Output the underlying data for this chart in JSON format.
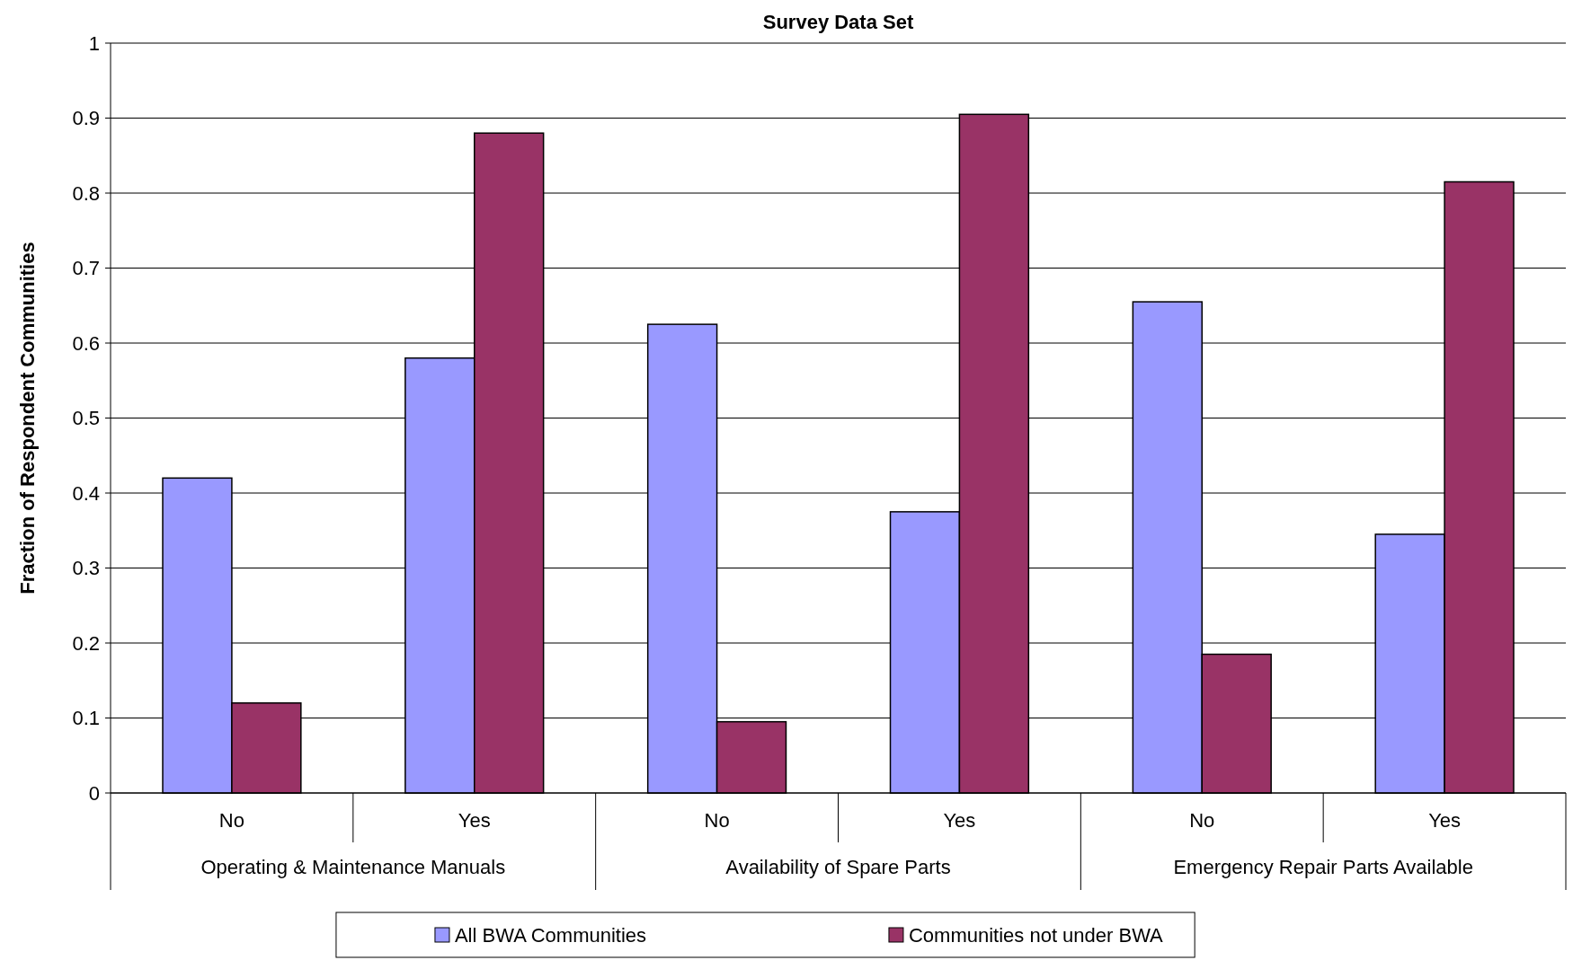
{
  "chart_data": {
    "type": "bar",
    "title": "Survey Data Set",
    "ylabel": "Fraction of Respondent Communities",
    "categories": [
      "No",
      "Yes",
      "No",
      "Yes",
      "No",
      "Yes"
    ],
    "annotations": [
      "Operating & Maintenance Manuals",
      "Availability of Spare Parts",
      "Emergency Repair Parts Available"
    ],
    "series": [
      {
        "name": "All BWA Communities",
        "color": "#9999ff",
        "values": [
          0.42,
          0.58,
          0.625,
          0.375,
          0.655,
          0.345
        ]
      },
      {
        "name": "Communities not under BWA",
        "color": "#993366",
        "values": [
          0.12,
          0.88,
          0.095,
          0.905,
          0.185,
          0.815
        ]
      }
    ],
    "ylim": [
      0,
      1
    ],
    "yticks": [
      0,
      0.1,
      0.2,
      0.3,
      0.4,
      0.5,
      0.6,
      0.7,
      0.8,
      0.9,
      1
    ],
    "grid": "y",
    "legend": "bottom"
  }
}
